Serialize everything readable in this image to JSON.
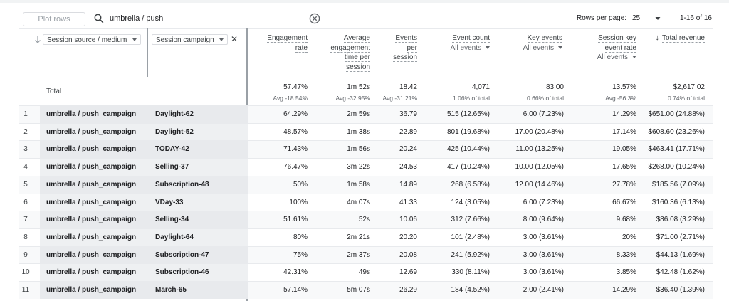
{
  "toolbar": {
    "plot_rows_label": "Plot rows",
    "search_value": "umbrella / push",
    "rows_per_page_label": "Rows per page:",
    "rows_per_page_value": "25",
    "page_range": "1-16 of 16"
  },
  "dimensions": {
    "primary": "Session source / medium",
    "secondary": "Session campaign"
  },
  "metrics": {
    "engagement_rate": [
      "Engagement",
      "rate"
    ],
    "avg_engagement_time": [
      "Average",
      "engagement",
      "time per",
      "session"
    ],
    "events_per_session": [
      "Events",
      "per",
      "session"
    ],
    "event_count": [
      "Event count"
    ],
    "key_events": [
      "Key events"
    ],
    "session_key_event_rate": [
      "Session key",
      "event rate"
    ],
    "total_revenue": "Total revenue",
    "all_events_label": "All events"
  },
  "totals": {
    "label": "Total",
    "engagement_rate": {
      "value": "57.47%",
      "sub": "Avg -18.54%"
    },
    "avg_engagement_time": {
      "value": "1m 52s",
      "sub": "Avg -32.95%"
    },
    "events_per_session": {
      "value": "18.42",
      "sub": "Avg -31.21%"
    },
    "event_count": {
      "value": "4,071",
      "sub": "1.06% of total"
    },
    "key_events": {
      "value": "83.00",
      "sub": "0.66% of total"
    },
    "session_key_event_rate": {
      "value": "13.57%",
      "sub": "Avg -56.3%"
    },
    "total_revenue": {
      "value": "$2,617.02",
      "sub": "0.74% of total"
    }
  },
  "rows": [
    {
      "idx": "1",
      "source": "umbrella / push_campaign",
      "campaign": "Daylight-62",
      "er": "64.29%",
      "aet": "2m 59s",
      "eps": "36.79",
      "ec": "515 (12.65%)",
      "ke": "6.00 (7.23%)",
      "sker": "14.29%",
      "rev": "$651.00 (24.88%)"
    },
    {
      "idx": "2",
      "source": "umbrella / push_campaign",
      "campaign": "Daylight-52",
      "er": "48.57%",
      "aet": "1m 38s",
      "eps": "22.89",
      "ec": "801 (19.68%)",
      "ke": "17.00 (20.48%)",
      "sker": "17.14%",
      "rev": "$608.60 (23.26%)"
    },
    {
      "idx": "3",
      "source": "umbrella / push_campaign",
      "campaign": "TODAY-42",
      "er": "71.43%",
      "aet": "1m 56s",
      "eps": "20.24",
      "ec": "425 (10.44%)",
      "ke": "11.00 (13.25%)",
      "sker": "19.05%",
      "rev": "$463.41 (17.71%)"
    },
    {
      "idx": "4",
      "source": "umbrella / push_campaign",
      "campaign": "Selling-37",
      "er": "76.47%",
      "aet": "3m 22s",
      "eps": "24.53",
      "ec": "417 (10.24%)",
      "ke": "10.00 (12.05%)",
      "sker": "17.65%",
      "rev": "$268.00 (10.24%)"
    },
    {
      "idx": "5",
      "source": "umbrella / push_campaign",
      "campaign": "Subscription-48",
      "er": "50%",
      "aet": "1m 58s",
      "eps": "14.89",
      "ec": "268 (6.58%)",
      "ke": "12.00 (14.46%)",
      "sker": "27.78%",
      "rev": "$185.56 (7.09%)"
    },
    {
      "idx": "6",
      "source": "umbrella / push_campaign",
      "campaign": "VDay-33",
      "er": "100%",
      "aet": "4m 07s",
      "eps": "41.33",
      "ec": "124 (3.05%)",
      "ke": "6.00 (7.23%)",
      "sker": "66.67%",
      "rev": "$160.36 (6.13%)"
    },
    {
      "idx": "7",
      "source": "umbrella / push_campaign",
      "campaign": "Selling-34",
      "er": "51.61%",
      "aet": "52s",
      "eps": "10.06",
      "ec": "312 (7.66%)",
      "ke": "8.00 (9.64%)",
      "sker": "9.68%",
      "rev": "$86.08 (3.29%)"
    },
    {
      "idx": "8",
      "source": "umbrella / push_campaign",
      "campaign": "Daylight-64",
      "er": "80%",
      "aet": "2m 21s",
      "eps": "20.20",
      "ec": "101 (2.48%)",
      "ke": "3.00 (3.61%)",
      "sker": "20%",
      "rev": "$71.00 (2.71%)"
    },
    {
      "idx": "9",
      "source": "umbrella / push_campaign",
      "campaign": "Subscription-47",
      "er": "75%",
      "aet": "2m 37s",
      "eps": "20.08",
      "ec": "241 (5.92%)",
      "ke": "3.00 (3.61%)",
      "sker": "8.33%",
      "rev": "$44.13 (1.69%)"
    },
    {
      "idx": "10",
      "source": "umbrella / push_campaign",
      "campaign": "Subscription-46",
      "er": "42.31%",
      "aet": "49s",
      "eps": "12.69",
      "ec": "330 (8.11%)",
      "ke": "3.00 (3.61%)",
      "sker": "3.85%",
      "rev": "$42.48 (1.62%)"
    },
    {
      "idx": "11",
      "source": "umbrella / push_campaign",
      "campaign": "March-65",
      "er": "57.14%",
      "aet": "5m 07s",
      "eps": "26.29",
      "ec": "184 (4.52%)",
      "ke": "2.00 (2.41%)",
      "sker": "14.29%",
      "rev": "$36.40 (1.39%)"
    }
  ],
  "icons": {
    "search": "search-icon",
    "clear": "clear-search-icon",
    "sort": "sort-arrow-icon"
  }
}
